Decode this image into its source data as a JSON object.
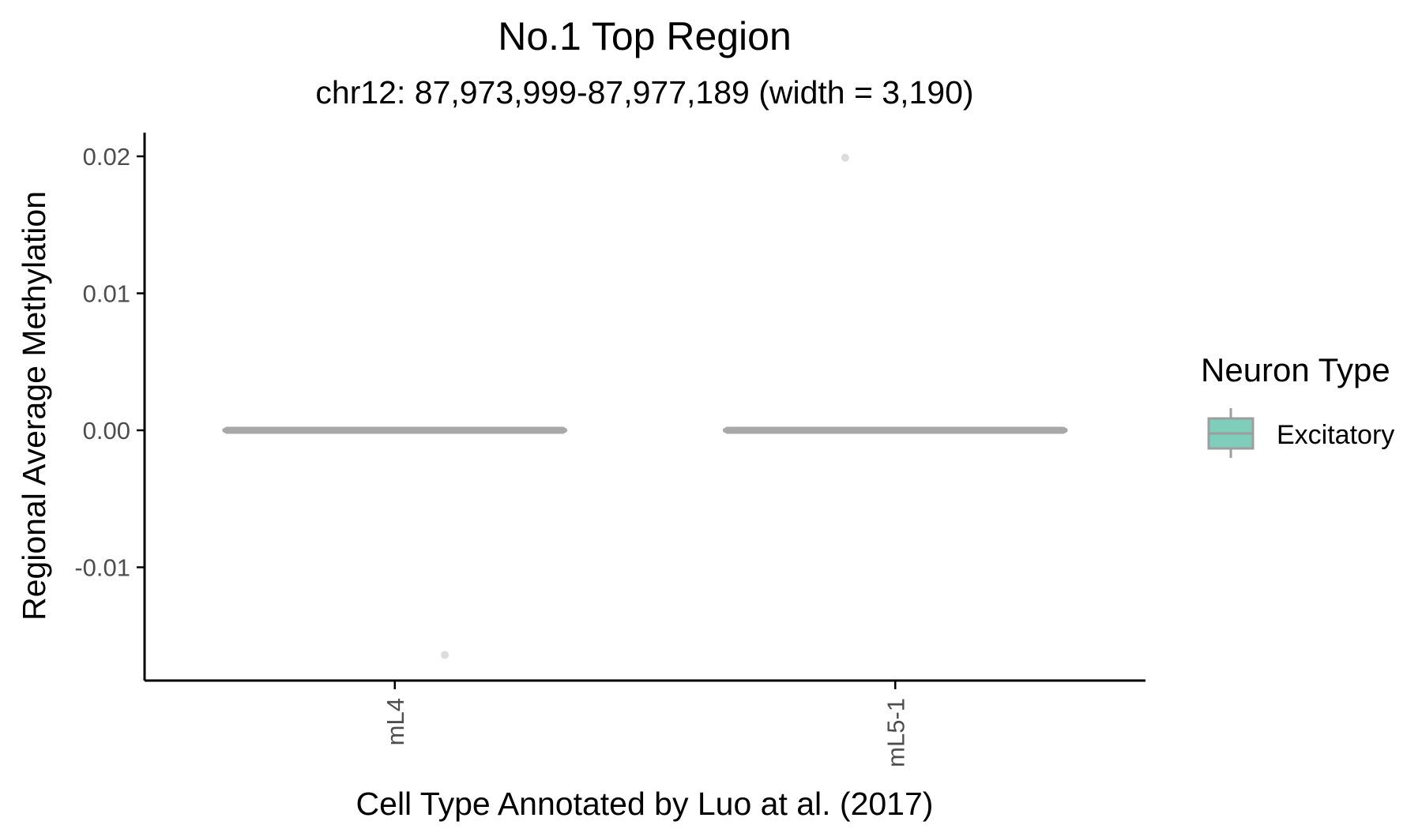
{
  "chart_data": {
    "type": "boxplot",
    "title": "No.1 Top Region",
    "subtitle": "chr12: 87,973,999-87,977,189 (width = 3,190)",
    "xlabel": "Cell Type Annotated by Luo at al. (2017)",
    "ylabel": "Regional Average Methylation",
    "categories": [
      "mL4",
      "mL5-1"
    ],
    "ylim": [
      -0.018,
      0.0215
    ],
    "yticks": [
      {
        "value": 0.02,
        "label": "0.02"
      },
      {
        "value": 0.01,
        "label": "0.01"
      },
      {
        "value": 0.0,
        "label": "0.00"
      },
      {
        "value": -0.01,
        "label": "-0.01"
      }
    ],
    "series": [
      {
        "name": "Excitatory",
        "boxes": [
          {
            "category": "mL4",
            "q1": 0,
            "median": 0,
            "q3": 0,
            "whisker_low": 0,
            "whisker_high": 0
          },
          {
            "category": "mL5-1",
            "q1": 0,
            "median": 0,
            "q3": 0,
            "whisker_low": 0,
            "whisker_high": 0
          }
        ],
        "points": [
          {
            "category": "mL4",
            "jitter": 0.1,
            "y": -0.0164
          },
          {
            "category": "mL5-1",
            "jitter": -0.1,
            "y": 0.0199
          }
        ]
      }
    ],
    "legend": {
      "title": "Neuron Type",
      "position": "right",
      "items": [
        {
          "label": "Excitatory",
          "fill": "#7fcdbb",
          "stroke": "#9e9e9e"
        }
      ]
    },
    "colors": {
      "box_line": "#a8a8a8",
      "point": "#dcdcdc",
      "axis": "#000000"
    },
    "grid": false
  }
}
